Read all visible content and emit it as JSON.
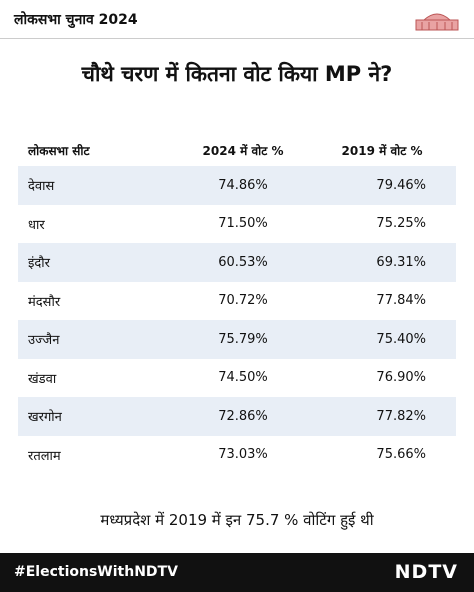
{
  "header": {
    "title": "लोकसभा चुनाव 2024"
  },
  "title": "चौथे चरण में कितना वोट किया MP ने?",
  "table": {
    "columns": [
      "लोकसभा सीट",
      "2024 में वोट %",
      "2019 में वोट %"
    ],
    "rows": [
      [
        "देवास",
        "74.86%",
        "79.46%"
      ],
      [
        "धार",
        "71.50%",
        "75.25%"
      ],
      [
        "इंदौर",
        "60.53%",
        "69.31%"
      ],
      [
        "मंदसौर",
        "70.72%",
        "77.84%"
      ],
      [
        "उज्जैन",
        "75.79%",
        "75.40%"
      ],
      [
        "खंडवा",
        "74.50%",
        "76.90%"
      ],
      [
        "खरगोन",
        "72.86%",
        "77.82%"
      ],
      [
        "रतलाम",
        "73.03%",
        "75.66%"
      ]
    ]
  },
  "note": "मध्यप्रदेश में 2019 में इन 75.7 % वोटिंग हुई थी",
  "footer": {
    "hashtag": "#ElectionsWithNDTV",
    "logo": "NDTV"
  }
}
